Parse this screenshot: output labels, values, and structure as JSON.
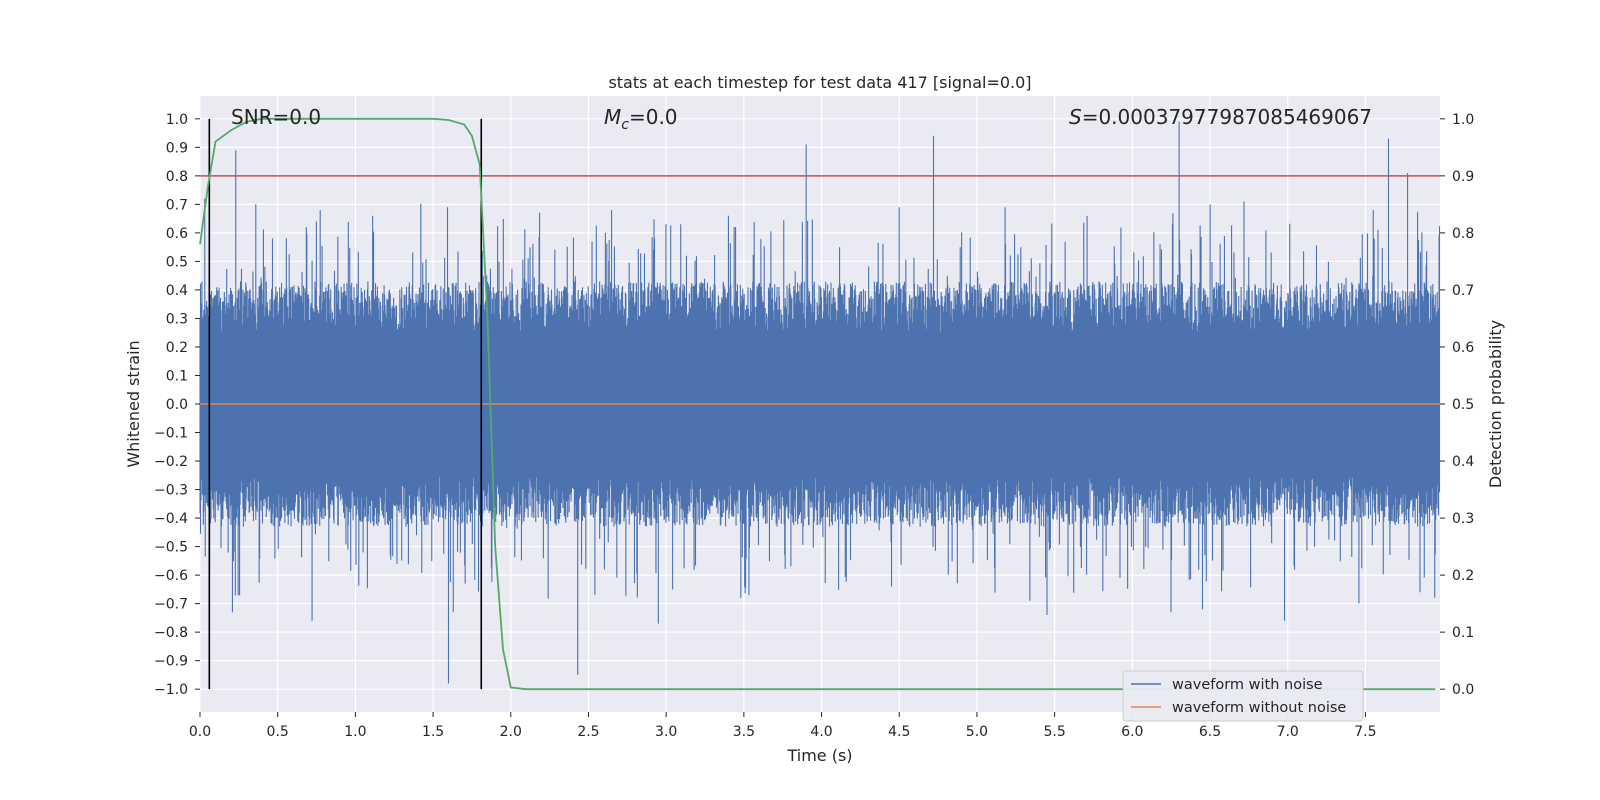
{
  "chart_data": {
    "type": "line",
    "title": "stats at each timestep for test data 417 [signal=0.0]",
    "xlabel": "Time (s)",
    "ylabel_left": "Whitened strain",
    "ylabel_right": "Detection probability",
    "xlim": [
      0.0,
      7.98
    ],
    "ylim_left": [
      -1.08,
      1.08
    ],
    "ylim_right": [
      -0.04,
      1.04
    ],
    "xticks": [
      "0.0",
      "0.5",
      "1.0",
      "1.5",
      "2.0",
      "2.5",
      "3.0",
      "3.5",
      "4.0",
      "4.5",
      "5.0",
      "5.5",
      "6.0",
      "6.5",
      "7.0",
      "7.5"
    ],
    "yticks_left": [
      "1.0",
      "0.9",
      "0.8",
      "0.7",
      "0.6",
      "0.5",
      "0.4",
      "0.3",
      "0.2",
      "0.1",
      "0.0",
      "-0.1",
      "-0.2",
      "-0.3",
      "-0.4",
      "-0.5",
      "-0.6",
      "-0.7",
      "-0.8",
      "-0.9",
      "-1.0"
    ],
    "yticks_right": [
      "1.0",
      "0.9",
      "0.8",
      "0.7",
      "0.6",
      "0.5",
      "0.4",
      "0.3",
      "0.2",
      "0.1",
      "0.0"
    ],
    "annotations": {
      "snr": "SNR=0.0",
      "mc_symbol": "M",
      "mc_sub": "c",
      "mc_value": "=0.0",
      "s_symbol": "S",
      "s_value": "=0.00037977987085469067"
    },
    "threshold": {
      "value": 0.8,
      "axis": "left",
      "color": "#c44e52"
    },
    "vertical_lines": [
      0.06,
      1.81
    ],
    "series": [
      {
        "name": "waveform with noise",
        "color": "#4c72b0",
        "axis": "left",
        "style": "noise",
        "peaks_positive": [
          [
            0.03,
            0.72
          ],
          [
            0.23,
            0.89
          ],
          [
            0.36,
            0.7
          ],
          [
            0.75,
            0.64
          ],
          [
            1.11,
            0.66
          ],
          [
            2.65,
            0.68
          ],
          [
            3.9,
            0.91
          ],
          [
            4.5,
            0.69
          ],
          [
            4.72,
            0.94
          ],
          [
            5.18,
            0.69
          ],
          [
            6.3,
            0.99
          ],
          [
            6.5,
            0.7
          ],
          [
            6.72,
            0.71
          ],
          [
            7.65,
            0.93
          ],
          [
            7.77,
            0.81
          ],
          [
            7.55,
            0.68
          ],
          [
            3.4,
            0.66
          ],
          [
            3.0,
            0.63
          ]
        ],
        "peaks_negative": [
          [
            0.06,
            -0.59
          ],
          [
            0.21,
            -0.73
          ],
          [
            0.72,
            -0.76
          ],
          [
            1.6,
            -0.98
          ],
          [
            1.63,
            -0.73
          ],
          [
            2.43,
            -0.95
          ],
          [
            2.95,
            -0.77
          ],
          [
            3.48,
            -0.68
          ],
          [
            5.45,
            -0.74
          ],
          [
            6.25,
            -0.73
          ],
          [
            6.45,
            -0.72
          ],
          [
            6.98,
            -0.76
          ],
          [
            7.85,
            -0.66
          ],
          [
            4.45,
            -0.64
          ]
        ]
      },
      {
        "name": "waveform without noise",
        "color": "#dd8452",
        "axis": "left",
        "constant": 0.0
      },
      {
        "name": "detection probability",
        "color": "#55a868",
        "axis": "right",
        "x": [
          0.0,
          0.05,
          0.1,
          0.2,
          0.3,
          0.4,
          0.5,
          0.6,
          0.8,
          1.0,
          1.2,
          1.4,
          1.5,
          1.6,
          1.7,
          1.75,
          1.8,
          1.85,
          1.9,
          1.95,
          2.0,
          2.1,
          2.5,
          3.0,
          7.95
        ],
        "y": [
          0.78,
          0.88,
          0.96,
          0.98,
          0.995,
          1.0,
          1.0,
          1.0,
          1.0,
          1.0,
          1.0,
          1.0,
          1.0,
          0.998,
          0.99,
          0.97,
          0.92,
          0.65,
          0.25,
          0.07,
          0.003,
          0.0,
          0.0,
          0.0,
          0.0
        ]
      }
    ],
    "legend": {
      "position": "lower-right",
      "entries": [
        {
          "label": "waveform with noise",
          "color": "#4c72b0"
        },
        {
          "label": "waveform without noise",
          "color": "#dd8452"
        }
      ]
    }
  }
}
